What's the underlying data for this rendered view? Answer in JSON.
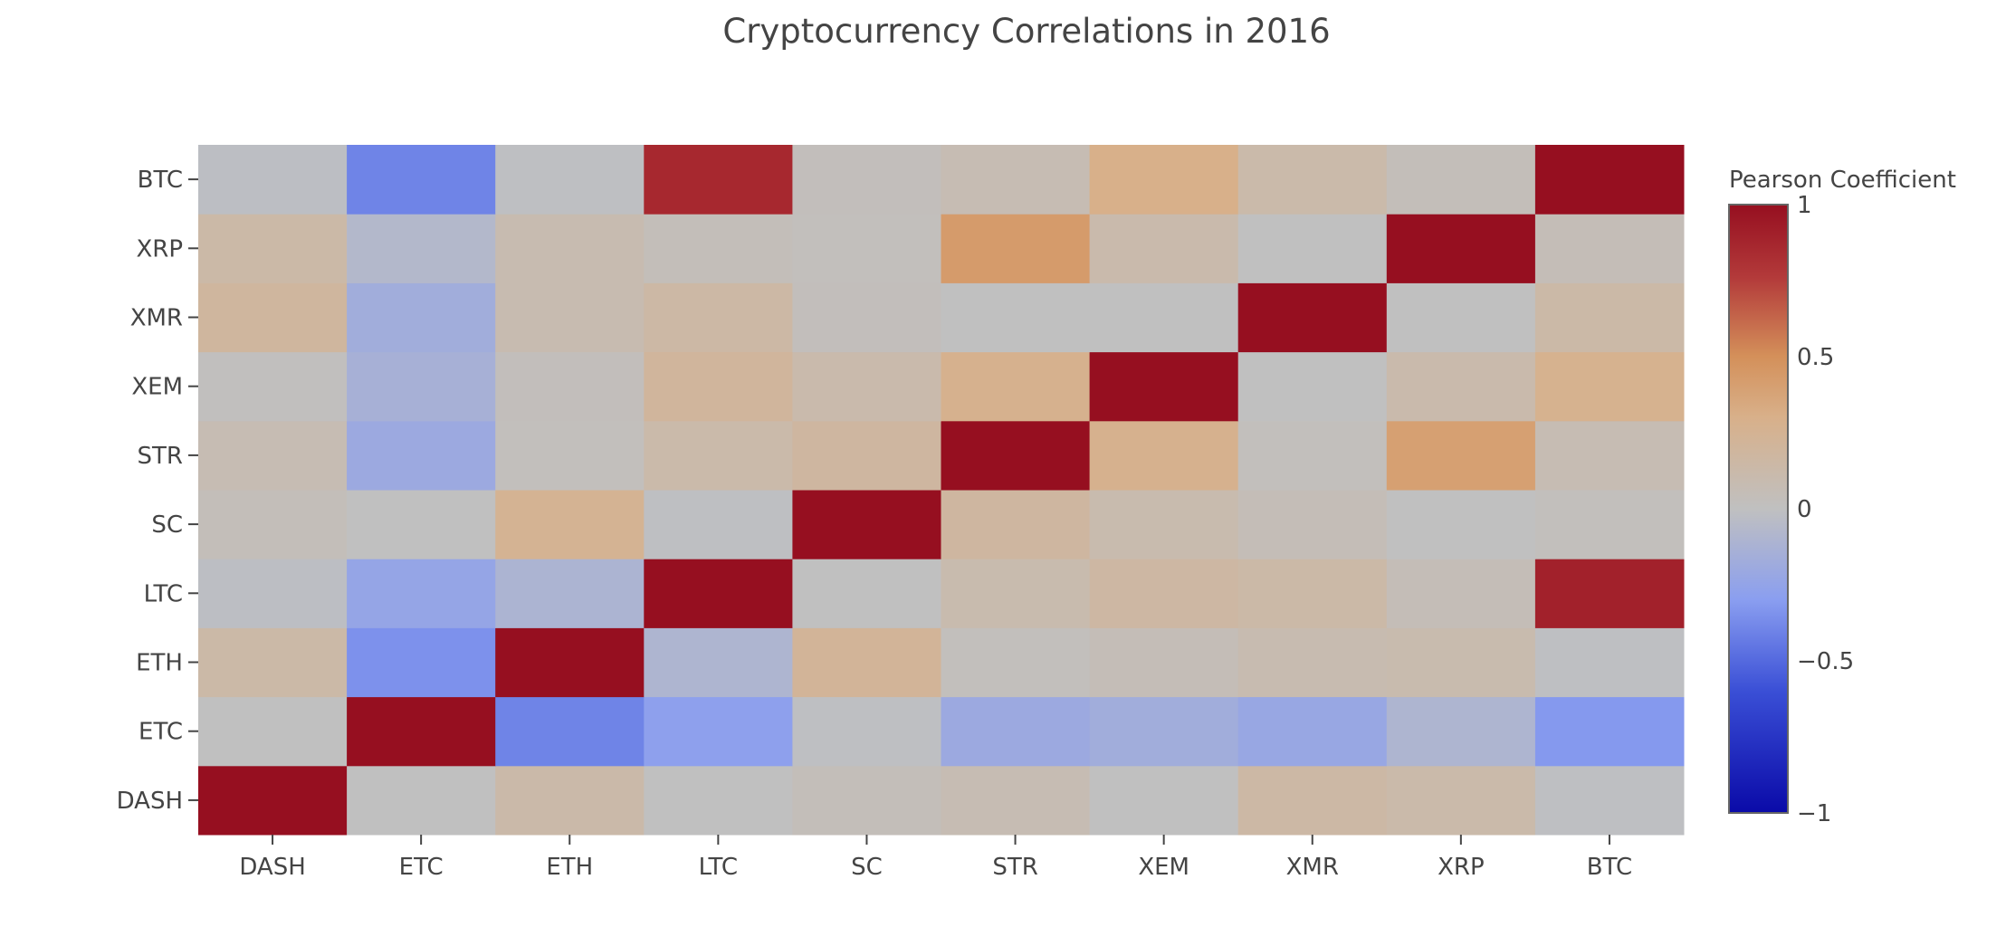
{
  "chart_data": {
    "type": "heatmap",
    "title": "Cryptocurrency Correlations in 2016",
    "x_categories": [
      "DASH",
      "ETC",
      "ETH",
      "LTC",
      "SC",
      "STR",
      "XEM",
      "XMR",
      "XRP",
      "BTC"
    ],
    "y_categories": [
      "DASH",
      "ETC",
      "ETH",
      "LTC",
      "SC",
      "STR",
      "XEM",
      "XMR",
      "XRP",
      "BTC"
    ],
    "values": [
      [
        1.0,
        0.0,
        0.13,
        0.0,
        0.04,
        0.07,
        0.0,
        0.15,
        0.12,
        -0.01
      ],
      [
        0.0,
        1.0,
        -0.4,
        -0.28,
        -0.01,
        -0.2,
        -0.17,
        -0.22,
        -0.1,
        -0.32
      ],
      [
        0.14,
        -0.35,
        1.0,
        -0.1,
        0.22,
        0.02,
        0.05,
        0.09,
        0.1,
        -0.01
      ],
      [
        -0.02,
        -0.24,
        -0.11,
        1.0,
        0.0,
        0.1,
        0.16,
        0.14,
        0.05,
        0.9
      ],
      [
        0.04,
        0.0,
        0.25,
        -0.01,
        1.0,
        0.18,
        0.1,
        0.05,
        0.0,
        0.02
      ],
      [
        0.07,
        -0.2,
        0.02,
        0.12,
        0.18,
        1.0,
        0.28,
        0.02,
        0.4,
        0.07
      ],
      [
        0.01,
        -0.14,
        0.03,
        0.2,
        0.11,
        0.28,
        1.0,
        0.0,
        0.11,
        0.27
      ],
      [
        0.19,
        -0.17,
        0.09,
        0.15,
        0.03,
        0.0,
        0.0,
        1.0,
        0.0,
        0.14
      ],
      [
        0.14,
        -0.07,
        0.09,
        0.04,
        0.02,
        0.43,
        0.11,
        0.0,
        1.0,
        0.05
      ],
      [
        -0.02,
        -0.4,
        -0.01,
        0.86,
        0.03,
        0.07,
        0.3,
        0.12,
        0.04,
        1.0
      ]
    ],
    "zlim": [
      -1,
      1
    ],
    "colorbar": {
      "title": "Pearson Coefficient",
      "ticks": [
        1,
        0.5,
        0,
        -0.5,
        -1
      ],
      "tick_labels": [
        "1",
        "0.5",
        "0",
        "−0.5",
        "−1"
      ]
    },
    "colorscale": [
      [
        0.0,
        "#0a0aa8"
      ],
      [
        0.2,
        "#3a4fd6"
      ],
      [
        0.35,
        "#8a9ef0"
      ],
      [
        0.5,
        "#c0c0c0"
      ],
      [
        0.65,
        "#d8b08a"
      ],
      [
        0.75,
        "#d4905a"
      ],
      [
        0.88,
        "#b33a3a"
      ],
      [
        1.0,
        "#960f20"
      ]
    ]
  }
}
